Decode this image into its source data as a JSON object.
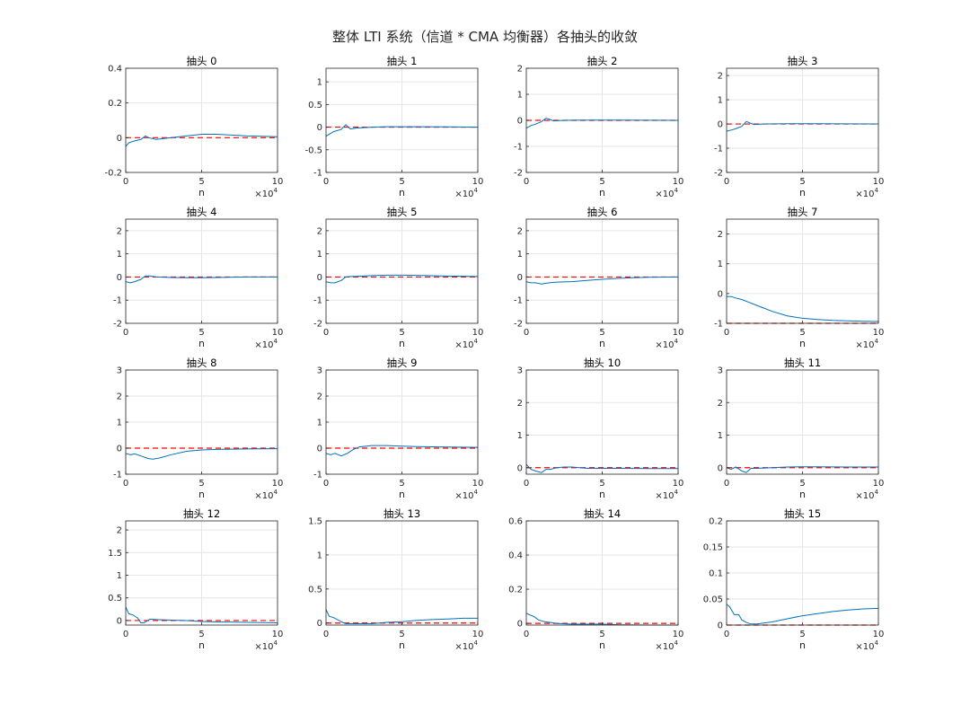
{
  "title": "整体 LTI 系统（信道 * CMA 均衡器）各抽头的收敛",
  "colors": {
    "series": "#0072BD",
    "reference": "#FF0000",
    "grid": "#E6E6E6",
    "axes": "#262626"
  },
  "chart_data": [
    {
      "type": "line",
      "title": "抽头 0",
      "xlabel": "n",
      "x_exponent": "×10^4",
      "xlim": [
        0,
        10
      ],
      "ylim": [
        -0.2,
        0.4
      ],
      "yticks": [
        -0.2,
        0,
        0.2,
        0.4
      ],
      "ytick_labels": [
        "-0.2",
        "0",
        "0.2",
        "0.4"
      ],
      "xticks": [
        0,
        5,
        10
      ],
      "grid": true,
      "reference": 0,
      "series": [
        {
          "x": [
            0,
            0.2,
            0.5,
            1,
            1.3,
            1.5,
            2,
            3,
            4,
            5,
            6,
            7,
            8,
            9,
            10
          ],
          "y": [
            -0.05,
            -0.03,
            -0.02,
            -0.01,
            0.01,
            0.0,
            -0.01,
            0.0,
            0.01,
            0.02,
            0.02,
            0.015,
            0.01,
            0.008,
            0.006
          ]
        }
      ]
    },
    {
      "type": "line",
      "title": "抽头 1",
      "xlabel": "n",
      "x_exponent": "×10^4",
      "xlim": [
        0,
        10
      ],
      "ylim": [
        -1,
        1.3
      ],
      "yticks": [
        -1,
        -0.5,
        0,
        0.5,
        1
      ],
      "ytick_labels": [
        "-1",
        "-0.5",
        "0",
        "0.5",
        "1"
      ],
      "xticks": [
        0,
        5,
        10
      ],
      "grid": true,
      "reference": 0,
      "series": [
        {
          "x": [
            0,
            0.2,
            0.5,
            1,
            1.3,
            1.6,
            2,
            3,
            4,
            5,
            6,
            8,
            10
          ],
          "y": [
            -0.2,
            -0.16,
            -0.1,
            -0.05,
            0.05,
            -0.04,
            -0.02,
            0,
            0.01,
            0.01,
            0.01,
            0.005,
            0
          ]
        }
      ]
    },
    {
      "type": "line",
      "title": "抽头 2",
      "xlabel": "n",
      "x_exponent": "×10^4",
      "xlim": [
        0,
        10
      ],
      "ylim": [
        -2,
        2
      ],
      "yticks": [
        -2,
        -1,
        0,
        1,
        2
      ],
      "ytick_labels": [
        "-2",
        "-1",
        "0",
        "1",
        "2"
      ],
      "xticks": [
        0,
        5,
        10
      ],
      "grid": true,
      "reference": 0,
      "series": [
        {
          "x": [
            0,
            0.3,
            0.6,
            1,
            1.3,
            1.5,
            1.8,
            2.5,
            4,
            6,
            8,
            10
          ],
          "y": [
            -0.3,
            -0.2,
            -0.15,
            -0.05,
            0.08,
            0.05,
            -0.02,
            0,
            0.01,
            0.01,
            0.005,
            0
          ]
        }
      ]
    },
    {
      "type": "line",
      "title": "抽头 3",
      "xlabel": "n",
      "x_exponent": "×10^4",
      "xlim": [
        0,
        10
      ],
      "ylim": [
        -2,
        2.3
      ],
      "yticks": [
        -2,
        -1,
        0,
        1,
        2
      ],
      "ytick_labels": [
        "-2",
        "-1",
        "0",
        "1",
        "2"
      ],
      "xticks": [
        0,
        5,
        10
      ],
      "grid": true,
      "reference": 0,
      "series": [
        {
          "x": [
            0,
            0.3,
            0.6,
            1,
            1.3,
            1.5,
            1.8,
            2.5,
            4,
            6,
            8,
            10
          ],
          "y": [
            -0.3,
            -0.25,
            -0.2,
            -0.1,
            0.1,
            0.05,
            -0.02,
            0,
            0.01,
            0.01,
            0.005,
            0
          ]
        }
      ]
    },
    {
      "type": "line",
      "title": "抽头 4",
      "xlabel": "n",
      "x_exponent": "×10^4",
      "xlim": [
        0,
        10
      ],
      "ylim": [
        -2,
        2.5
      ],
      "yticks": [
        -2,
        -1,
        0,
        1,
        2
      ],
      "ytick_labels": [
        "-2",
        "-1",
        "0",
        "1",
        "2"
      ],
      "xticks": [
        0,
        5,
        10
      ],
      "grid": true,
      "reference": 0,
      "series": [
        {
          "x": [
            0,
            0.3,
            0.6,
            1,
            1.3,
            1.6,
            2,
            3,
            4,
            5,
            6,
            8,
            10
          ],
          "y": [
            -0.2,
            -0.25,
            -0.2,
            -0.1,
            0.05,
            0.05,
            0,
            -0.02,
            -0.03,
            -0.03,
            -0.02,
            0,
            0
          ]
        }
      ]
    },
    {
      "type": "line",
      "title": "抽头 5",
      "xlabel": "n",
      "x_exponent": "×10^4",
      "xlim": [
        0,
        10
      ],
      "ylim": [
        -2,
        2.5
      ],
      "yticks": [
        -2,
        -1,
        0,
        1,
        2
      ],
      "ytick_labels": [
        "-2",
        "-1",
        "0",
        "1",
        "2"
      ],
      "xticks": [
        0,
        5,
        10
      ],
      "grid": true,
      "reference": 0,
      "series": [
        {
          "x": [
            0,
            0.3,
            0.6,
            1,
            1.3,
            1.6,
            2,
            3,
            4,
            5,
            6,
            8,
            10
          ],
          "y": [
            -0.2,
            -0.25,
            -0.25,
            -0.15,
            0,
            0.02,
            0.03,
            0.06,
            0.08,
            0.08,
            0.07,
            0.04,
            0.02
          ]
        }
      ]
    },
    {
      "type": "line",
      "title": "抽头 6",
      "xlabel": "n",
      "x_exponent": "×10^4",
      "xlim": [
        0,
        10
      ],
      "ylim": [
        -2,
        2.5
      ],
      "yticks": [
        -2,
        -1,
        0,
        1,
        2
      ],
      "ytick_labels": [
        "-2",
        "-1",
        "0",
        "1",
        "2"
      ],
      "xticks": [
        0,
        5,
        10
      ],
      "grid": true,
      "reference": 0,
      "series": [
        {
          "x": [
            0,
            0.3,
            0.6,
            1,
            1.5,
            2,
            3,
            4,
            5,
            6,
            7,
            8,
            10
          ],
          "y": [
            -0.2,
            -0.25,
            -0.25,
            -0.3,
            -0.25,
            -0.22,
            -0.2,
            -0.15,
            -0.1,
            -0.06,
            -0.03,
            -0.01,
            0
          ]
        }
      ]
    },
    {
      "type": "line",
      "title": "抽头 7",
      "xlabel": "n",
      "x_exponent": "×10^4",
      "xlim": [
        0,
        10
      ],
      "ylim": [
        -1,
        2.5
      ],
      "yticks": [
        -1,
        0,
        1,
        2
      ],
      "ytick_labels": [
        "-1",
        "0",
        "1",
        "2"
      ],
      "xticks": [
        0,
        5,
        10
      ],
      "grid": true,
      "reference": -1,
      "series": [
        {
          "x": [
            0,
            0.3,
            0.6,
            1,
            1.5,
            2,
            2.5,
            3,
            4,
            5,
            6,
            7,
            8,
            9,
            10
          ],
          "y": [
            -0.1,
            -0.1,
            -0.15,
            -0.2,
            -0.3,
            -0.4,
            -0.5,
            -0.6,
            -0.75,
            -0.83,
            -0.87,
            -0.9,
            -0.92,
            -0.93,
            -0.94
          ]
        }
      ]
    },
    {
      "type": "line",
      "title": "抽头 8",
      "xlabel": "n",
      "x_exponent": "×10^4",
      "xlim": [
        0,
        10
      ],
      "ylim": [
        -1,
        3
      ],
      "yticks": [
        -1,
        0,
        1,
        2,
        3
      ],
      "ytick_labels": [
        "-1",
        "0",
        "1",
        "2",
        "3"
      ],
      "xticks": [
        0,
        5,
        10
      ],
      "grid": true,
      "reference": 0,
      "series": [
        {
          "x": [
            0,
            0.3,
            0.6,
            1,
            1.5,
            1.8,
            2.2,
            3,
            4,
            5,
            6,
            8,
            10
          ],
          "y": [
            -0.2,
            -0.25,
            -0.22,
            -0.3,
            -0.4,
            -0.42,
            -0.38,
            -0.25,
            -0.12,
            -0.07,
            -0.05,
            -0.03,
            -0.02
          ]
        }
      ]
    },
    {
      "type": "line",
      "title": "抽头 9",
      "xlabel": "n",
      "x_exponent": "×10^4",
      "xlim": [
        0,
        10
      ],
      "ylim": [
        -1,
        3
      ],
      "yticks": [
        -1,
        0,
        1,
        2,
        3
      ],
      "ytick_labels": [
        "-1",
        "0",
        "1",
        "2",
        "3"
      ],
      "xticks": [
        0,
        5,
        10
      ],
      "grid": true,
      "reference": 0,
      "series": [
        {
          "x": [
            0,
            0.3,
            0.6,
            1,
            1.4,
            1.8,
            2.2,
            3,
            4,
            5,
            6,
            8,
            10
          ],
          "y": [
            -0.2,
            -0.25,
            -0.2,
            -0.3,
            -0.2,
            -0.05,
            0.05,
            0.1,
            0.1,
            0.08,
            0.06,
            0.04,
            0.03
          ]
        }
      ]
    },
    {
      "type": "line",
      "title": "抽头 10",
      "xlabel": "n",
      "x_exponent": "×10^4",
      "xlim": [
        0,
        10
      ],
      "ylim": [
        -0.2,
        3
      ],
      "yticks": [
        0,
        1,
        2,
        3
      ],
      "ytick_labels": [
        "0",
        "1",
        "2",
        "3"
      ],
      "xticks": [
        0,
        5,
        10
      ],
      "grid": true,
      "reference": 0,
      "series": [
        {
          "x": [
            0,
            0.3,
            0.6,
            1,
            1.3,
            1.6,
            2,
            2.5,
            3,
            4,
            6,
            8,
            10
          ],
          "y": [
            0.1,
            -0.05,
            -0.1,
            -0.15,
            -0.05,
            -0.05,
            0,
            0.02,
            0.02,
            -0.02,
            -0.02,
            -0.03,
            -0.03
          ]
        }
      ]
    },
    {
      "type": "line",
      "title": "抽头 11",
      "xlabel": "n",
      "x_exponent": "×10^4",
      "xlim": [
        0,
        10
      ],
      "ylim": [
        -0.2,
        3
      ],
      "yticks": [
        0,
        1,
        2,
        3
      ],
      "ytick_labels": [
        "0",
        "1",
        "2",
        "3"
      ],
      "xticks": [
        0,
        5,
        10
      ],
      "grid": true,
      "reference": 0,
      "series": [
        {
          "x": [
            0,
            0.3,
            0.6,
            1,
            1.3,
            1.6,
            2,
            3,
            4,
            5,
            6,
            8,
            10
          ],
          "y": [
            0,
            -0.05,
            0.02,
            -0.1,
            -0.15,
            -0.02,
            -0.02,
            0,
            0.02,
            0.03,
            0.03,
            0.02,
            0.02
          ]
        }
      ]
    },
    {
      "type": "line",
      "title": "抽头 12",
      "xlabel": "n",
      "x_exponent": "×10^4",
      "xlim": [
        0,
        10
      ],
      "ylim": [
        -0.1,
        2.2
      ],
      "yticks": [
        0,
        0.5,
        1,
        1.5,
        2
      ],
      "ytick_labels": [
        "0",
        "0.5",
        "1",
        "1.5",
        "2"
      ],
      "xticks": [
        0,
        5,
        10
      ],
      "grid": true,
      "reference": 0,
      "series": [
        {
          "x": [
            0,
            0.2,
            0.5,
            0.8,
            1,
            1.2,
            1.6,
            2,
            3,
            4,
            5,
            6,
            8,
            10
          ],
          "y": [
            0.3,
            0.15,
            0.12,
            0.05,
            -0.05,
            -0.05,
            0.03,
            0.02,
            0.01,
            0,
            -0.02,
            -0.03,
            -0.04,
            -0.05
          ]
        }
      ]
    },
    {
      "type": "line",
      "title": "抽头 13",
      "xlabel": "n",
      "x_exponent": "×10^4",
      "xlim": [
        0,
        10
      ],
      "ylim": [
        -0.03,
        1.5
      ],
      "yticks": [
        0,
        0.5,
        1,
        1.5
      ],
      "ytick_labels": [
        "0",
        "0.5",
        "1",
        "1.5"
      ],
      "xticks": [
        0,
        5,
        10
      ],
      "grid": true,
      "reference": 0,
      "series": [
        {
          "x": [
            0,
            0.2,
            0.5,
            1,
            1.3,
            1.8,
            2.5,
            3,
            4,
            5,
            6,
            7,
            8,
            9,
            10
          ],
          "y": [
            0.2,
            0.1,
            0.08,
            0.02,
            -0.01,
            -0.01,
            -0.01,
            -0.01,
            0.01,
            0.02,
            0.04,
            0.05,
            0.06,
            0.07,
            0.07
          ]
        }
      ]
    },
    {
      "type": "line",
      "title": "抽头 14",
      "xlabel": "n",
      "x_exponent": "×10^4",
      "xlim": [
        0,
        10
      ],
      "ylim": [
        -0.01,
        0.6
      ],
      "yticks": [
        0,
        0.2,
        0.4,
        0.6
      ],
      "ytick_labels": [
        "0",
        "0.2",
        "0.4",
        "0.6"
      ],
      "xticks": [
        0,
        5,
        10
      ],
      "grid": true,
      "reference": 0,
      "series": [
        {
          "x": [
            0,
            0.2,
            0.5,
            0.8,
            1.2,
            1.6,
            2,
            3,
            4,
            5,
            6,
            8,
            10
          ],
          "y": [
            0.06,
            0.05,
            0.04,
            0.02,
            0.01,
            0.005,
            0,
            -0.005,
            -0.005,
            -0.005,
            -0.008,
            -0.01,
            -0.01
          ]
        }
      ]
    },
    {
      "type": "line",
      "title": "抽头 15",
      "xlabel": "n",
      "x_exponent": "×10^4",
      "xlim": [
        0,
        10
      ],
      "ylim": [
        0,
        0.2
      ],
      "yticks": [
        0,
        0.05,
        0.1,
        0.15,
        0.2
      ],
      "ytick_labels": [
        "0",
        "0.05",
        "0.1",
        "0.15",
        "0.2"
      ],
      "xticks": [
        0,
        5,
        10
      ],
      "grid": true,
      "reference": 0,
      "series": [
        {
          "x": [
            0,
            0.2,
            0.5,
            0.8,
            1,
            1.3,
            1.6,
            2,
            3,
            4,
            5,
            6,
            7,
            8,
            9,
            10
          ],
          "y": [
            0.04,
            0.035,
            0.02,
            0.02,
            0.01,
            0.005,
            0.002,
            0.002,
            0.006,
            0.012,
            0.018,
            0.022,
            0.026,
            0.029,
            0.031,
            0.032
          ]
        }
      ]
    }
  ]
}
